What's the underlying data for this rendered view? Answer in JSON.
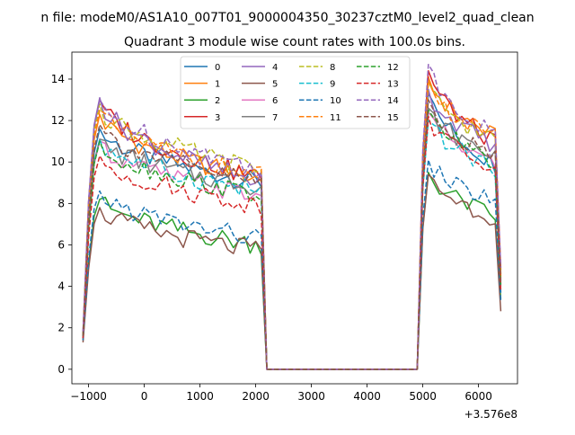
{
  "figure": {
    "suptitle": "n file: modeM0/AS1A10_007T01_9000004350_30237cztM0_level2_quad_clean",
    "title": "Quadrant 3 module wise count rates with 100.0s bins.",
    "x_offset_label": "+3.576e8"
  },
  "chart_data": {
    "type": "line",
    "title": "Quadrant 3 module wise count rates with 100.0s bins.",
    "xlabel": "",
    "ylabel": "",
    "x_offset": "+3.576e8",
    "xlim": [
      -1300,
      6700
    ],
    "ylim": [
      -0.7,
      15.3
    ],
    "xticks": [
      -1000,
      0,
      1000,
      2000,
      3000,
      4000,
      5000,
      6000
    ],
    "yticks": [
      0,
      2,
      4,
      6,
      8,
      10,
      12,
      14
    ],
    "grid": false,
    "legend_position": "top-center",
    "legend_columns": 4,
    "segments": [
      {
        "x_start": -1100,
        "x_end": 2100,
        "x_step": 100,
        "shape": "rise-then-gradual-decay"
      },
      {
        "x_start": 2200,
        "x_end": 4900,
        "x_step": 100,
        "shape": "zero"
      },
      {
        "x_start": 5000,
        "x_end": 6400,
        "x_step": 100,
        "shape": "rise-then-decay-then-drop"
      }
    ],
    "series": [
      {
        "name": "0",
        "color": "#1f77b4",
        "dash": "solid",
        "seg1_start": 1.6,
        "seg1_peak": 11.6,
        "seg1_end": 9.0,
        "seg3_peak": 13.3,
        "seg3_end": 9.9,
        "seg3_last": 3.7
      },
      {
        "name": "1",
        "color": "#ff7f0e",
        "dash": "solid",
        "seg1_start": 1.7,
        "seg1_peak": 12.3,
        "seg1_end": 9.2,
        "seg3_peak": 14.1,
        "seg3_end": 11.2,
        "seg3_last": 4.6
      },
      {
        "name": "2",
        "color": "#2ca02c",
        "dash": "solid",
        "seg1_start": 1.4,
        "seg1_peak": 8.2,
        "seg1_end": 6.0,
        "seg3_peak": 9.5,
        "seg3_end": 7.4,
        "seg3_last": 3.4
      },
      {
        "name": "3",
        "color": "#d62728",
        "dash": "solid",
        "seg1_start": 1.5,
        "seg1_peak": 13.0,
        "seg1_end": 9.2,
        "seg3_peak": 14.4,
        "seg3_end": 10.9,
        "seg3_last": 4.8
      },
      {
        "name": "4",
        "color": "#9467bd",
        "dash": "solid",
        "seg1_start": 1.8,
        "seg1_peak": 13.1,
        "seg1_end": 9.0,
        "seg3_peak": 13.5,
        "seg3_end": 10.8,
        "seg3_last": 4.3
      },
      {
        "name": "5",
        "color": "#8c564b",
        "dash": "solid",
        "seg1_start": 1.3,
        "seg1_peak": 7.8,
        "seg1_end": 5.7,
        "seg3_peak": 9.4,
        "seg3_end": 7.3,
        "seg3_last": 2.8
      },
      {
        "name": "6",
        "color": "#e377c2",
        "dash": "solid",
        "seg1_start": 1.6,
        "seg1_peak": 11.0,
        "seg1_end": 8.3,
        "seg3_peak": 12.4,
        "seg3_end": 9.9,
        "seg3_last": 4.0
      },
      {
        "name": "7",
        "color": "#7f7f7f",
        "dash": "solid",
        "seg1_start": 1.6,
        "seg1_peak": 11.1,
        "seg1_end": 8.8,
        "seg3_peak": 12.6,
        "seg3_end": 10.3,
        "seg3_last": 4.1
      },
      {
        "name": "8",
        "color": "#bcbd22",
        "dash": "dashed",
        "seg1_start": 1.7,
        "seg1_peak": 12.8,
        "seg1_end": 9.6,
        "seg3_peak": 13.8,
        "seg3_end": 11.0,
        "seg3_last": 4.4
      },
      {
        "name": "9",
        "color": "#17becf",
        "dash": "dashed",
        "seg1_start": 1.6,
        "seg1_peak": 11.1,
        "seg1_end": 8.6,
        "seg3_peak": 12.0,
        "seg3_end": 9.7,
        "seg3_last": 3.9
      },
      {
        "name": "10",
        "color": "#1f77b4",
        "dash": "dashed",
        "seg1_start": 1.4,
        "seg1_peak": 8.6,
        "seg1_end": 6.3,
        "seg3_peak": 10.1,
        "seg3_end": 8.1,
        "seg3_last": 3.3
      },
      {
        "name": "11",
        "color": "#ff7f0e",
        "dash": "dashed",
        "seg1_start": 1.7,
        "seg1_peak": 12.5,
        "seg1_end": 9.3,
        "seg3_peak": 13.9,
        "seg3_end": 11.1,
        "seg3_last": 4.5
      },
      {
        "name": "12",
        "color": "#2ca02c",
        "dash": "dashed",
        "seg1_start": 1.6,
        "seg1_peak": 11.0,
        "seg1_end": 8.4,
        "seg3_peak": 12.5,
        "seg3_end": 10.0,
        "seg3_last": 4.0
      },
      {
        "name": "13",
        "color": "#d62728",
        "dash": "dashed",
        "seg1_start": 1.5,
        "seg1_peak": 10.3,
        "seg1_end": 7.9,
        "seg3_peak": 12.2,
        "seg3_end": 9.6,
        "seg3_last": 3.8
      },
      {
        "name": "14",
        "color": "#9467bd",
        "dash": "dashed",
        "seg1_start": 1.8,
        "seg1_peak": 13.0,
        "seg1_end": 9.7,
        "seg3_peak": 14.7,
        "seg3_end": 11.3,
        "seg3_last": 4.9
      },
      {
        "name": "15",
        "color": "#8c564b",
        "dash": "dashed",
        "seg1_start": 1.6,
        "seg1_peak": 11.8,
        "seg1_end": 9.0,
        "seg3_peak": 13.0,
        "seg3_end": 10.2,
        "seg3_last": 4.2
      }
    ]
  }
}
